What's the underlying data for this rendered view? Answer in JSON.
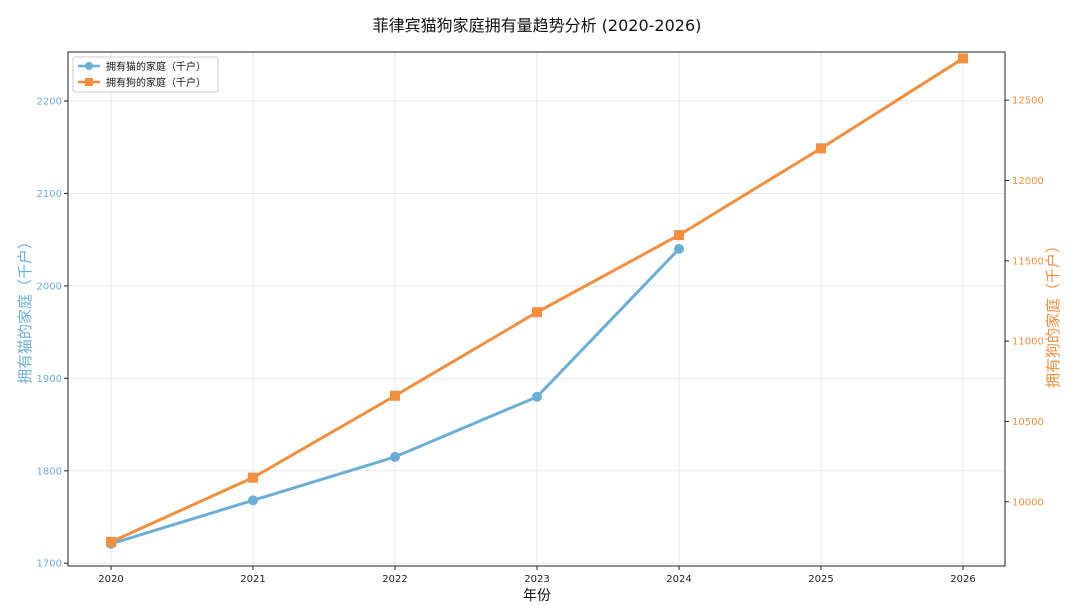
{
  "chart_data": {
    "type": "line",
    "title": "菲律宾猫狗家庭拥有量趋势分析 (2020-2026)",
    "xlabel": "年份",
    "categories": [
      "2020",
      "2021",
      "2022",
      "2023",
      "2024",
      "2025",
      "2026"
    ],
    "series": [
      {
        "name": "拥有猫的家庭（千户）",
        "axis": "left",
        "color": "#6baed6",
        "marker": "circle",
        "values": [
          1721,
          1768,
          1815,
          1880,
          2040,
          null,
          null
        ]
      },
      {
        "name": "拥有狗的家庭（千户）",
        "axis": "right",
        "color": "#f28e3c",
        "marker": "square",
        "values": [
          9750,
          10150,
          10660,
          11180,
          11660,
          12200,
          12760
        ]
      }
    ],
    "y_left": {
      "label": "拥有猫的家庭（千户）",
      "range": [
        1697,
        2253
      ],
      "ticks": [
        1700,
        1800,
        1900,
        2000,
        2100,
        2200
      ],
      "color": "#6baed6"
    },
    "y_right": {
      "label": "拥有狗的家庭（千户）",
      "range": [
        9600,
        12800
      ],
      "ticks": [
        10000,
        10500,
        11000,
        11500,
        12000,
        12500
      ],
      "color": "#f28e3c"
    },
    "grid": true,
    "legend": "top-left"
  }
}
